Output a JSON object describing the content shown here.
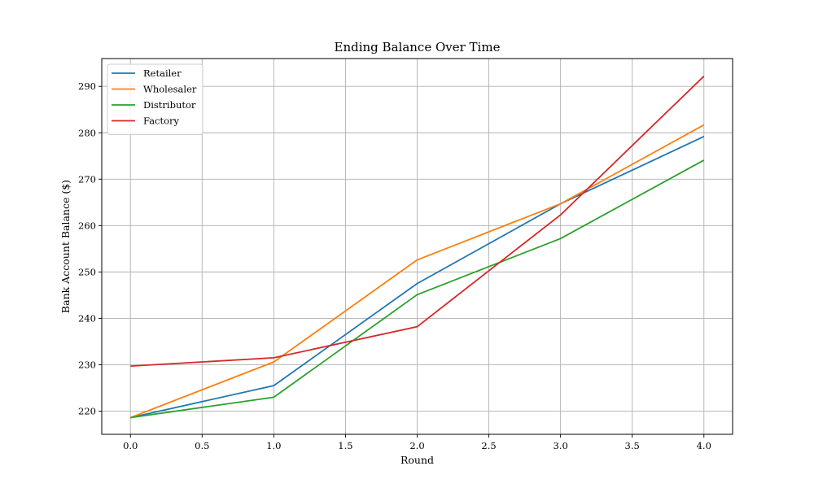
{
  "chart_data": {
    "type": "line",
    "title": "Ending Balance Over Time",
    "xlabel": "Round",
    "ylabel": "Bank Account Balance ($)",
    "x": [
      0,
      1,
      2,
      3,
      4
    ],
    "xlim": [
      -0.2,
      4.2
    ],
    "ylim": [
      215,
      296
    ],
    "xticks": [
      0.0,
      0.5,
      1.0,
      1.5,
      2.0,
      2.5,
      3.0,
      3.5,
      4.0
    ],
    "xtick_labels": [
      "0.0",
      "0.5",
      "1.0",
      "1.5",
      "2.0",
      "2.5",
      "3.0",
      "3.5",
      "4.0"
    ],
    "yticks": [
      220,
      230,
      240,
      250,
      260,
      270,
      280,
      290
    ],
    "ytick_labels": [
      "220",
      "230",
      "240",
      "250",
      "260",
      "270",
      "280",
      "290"
    ],
    "grid": true,
    "legend_position": "top-left",
    "series": [
      {
        "name": "Retailer",
        "color": "#1f77b4",
        "values": [
          218.6,
          225.5,
          247.5,
          264.7,
          279.2
        ]
      },
      {
        "name": "Wholesaler",
        "color": "#ff7f0e",
        "values": [
          218.6,
          230.6,
          252.6,
          264.7,
          281.7
        ]
      },
      {
        "name": "Distributor",
        "color": "#2ca02c",
        "values": [
          218.6,
          223.0,
          245.1,
          257.2,
          274.1
        ]
      },
      {
        "name": "Factory",
        "color": "#d62728",
        "values": [
          229.7,
          231.5,
          238.2,
          262.3,
          292.2
        ]
      }
    ]
  }
}
